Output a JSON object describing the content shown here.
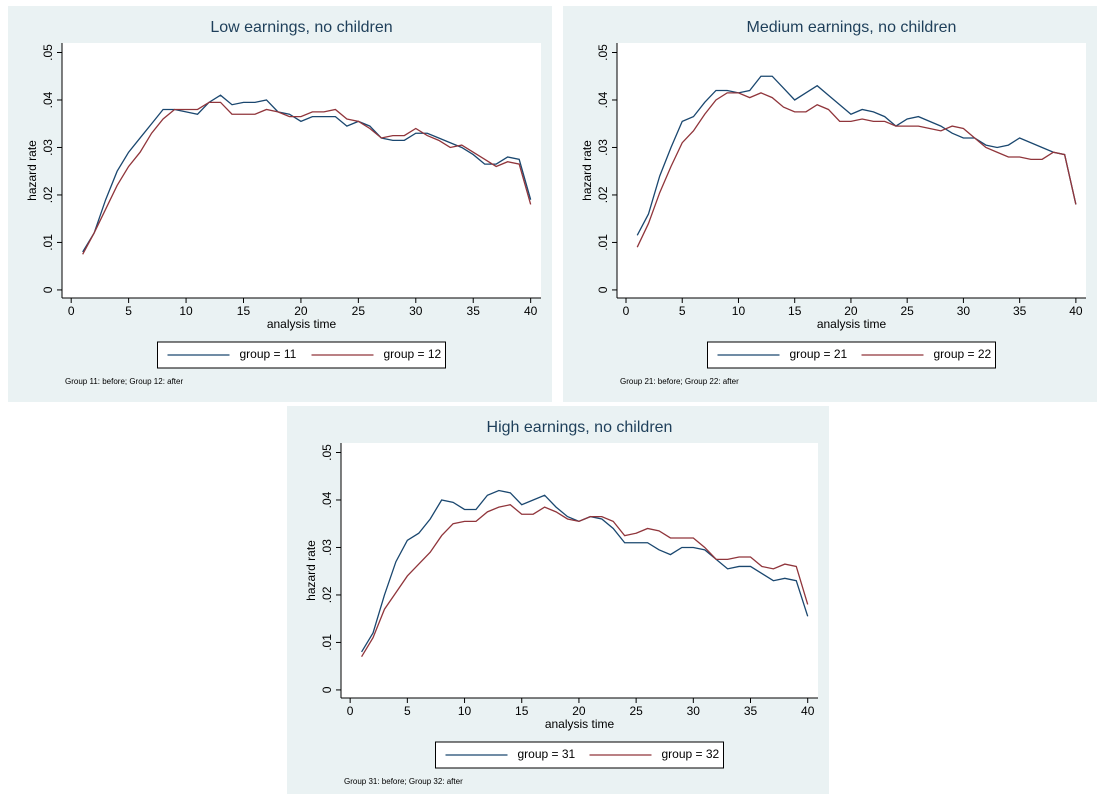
{
  "chart_data": [
    {
      "type": "line",
      "title": "Low earnings, no children",
      "xlabel": "analysis time",
      "ylabel": "hazard rate",
      "note": "Group 11: before; Group 12: after",
      "x": [
        1,
        2,
        3,
        4,
        5,
        6,
        7,
        8,
        9,
        10,
        11,
        12,
        13,
        14,
        15,
        16,
        17,
        18,
        19,
        20,
        21,
        22,
        23,
        24,
        25,
        26,
        27,
        28,
        29,
        30,
        31,
        32,
        33,
        34,
        35,
        36,
        37,
        38,
        39,
        40
      ],
      "series": [
        {
          "name": "group = 11",
          "color": "#1a476f",
          "values": [
            0.008,
            0.012,
            0.019,
            0.025,
            0.029,
            0.032,
            0.035,
            0.038,
            0.038,
            0.0375,
            0.037,
            0.0395,
            0.041,
            0.039,
            0.0395,
            0.0395,
            0.04,
            0.0375,
            0.037,
            0.0355,
            0.0365,
            0.0365,
            0.0365,
            0.0345,
            0.0355,
            0.0345,
            0.032,
            0.0315,
            0.0315,
            0.033,
            0.033,
            0.032,
            0.031,
            0.03,
            0.0285,
            0.0265,
            0.0265,
            0.028,
            0.0275,
            0.019
          ]
        },
        {
          "name": "group = 12",
          "color": "#90353b",
          "values": [
            0.0075,
            0.012,
            0.017,
            0.022,
            0.026,
            0.029,
            0.033,
            0.036,
            0.038,
            0.038,
            0.038,
            0.0395,
            0.0395,
            0.037,
            0.037,
            0.037,
            0.038,
            0.0375,
            0.0365,
            0.0365,
            0.0375,
            0.0375,
            0.038,
            0.036,
            0.0355,
            0.034,
            0.032,
            0.0325,
            0.0325,
            0.034,
            0.0325,
            0.0315,
            0.03,
            0.0305,
            0.029,
            0.0275,
            0.026,
            0.027,
            0.0265,
            0.018
          ]
        }
      ],
      "xlim": [
        -0.8,
        40.9
      ],
      "xticks": [
        0,
        5,
        10,
        15,
        20,
        25,
        30,
        35,
        40
      ],
      "ylim": [
        -0.0017,
        0.052
      ],
      "yticks": [
        0,
        {
          "value": 0.01,
          "label": ".01"
        },
        {
          "value": 0.02,
          "label": ".02"
        },
        {
          "value": 0.03,
          "label": ".03"
        },
        {
          "value": 0.04,
          "label": ".04"
        },
        {
          "value": 0.05,
          "label": ".05"
        }
      ]
    },
    {
      "type": "line",
      "title": "Medium earnings, no children",
      "xlabel": "analysis time",
      "ylabel": "hazard rate",
      "note": "Group 21: before; Group 22: after",
      "x": [
        1,
        2,
        3,
        4,
        5,
        6,
        7,
        8,
        9,
        10,
        11,
        12,
        13,
        14,
        15,
        16,
        17,
        18,
        19,
        20,
        21,
        22,
        23,
        24,
        25,
        26,
        27,
        28,
        29,
        30,
        31,
        32,
        33,
        34,
        35,
        36,
        37,
        38,
        39,
        40
      ],
      "series": [
        {
          "name": "group = 21",
          "color": "#1a476f",
          "values": [
            0.0115,
            0.016,
            0.024,
            0.03,
            0.0355,
            0.0365,
            0.0395,
            0.042,
            0.042,
            0.0415,
            0.042,
            0.045,
            0.045,
            0.0425,
            0.04,
            0.0415,
            0.043,
            0.041,
            0.039,
            0.037,
            0.038,
            0.0375,
            0.0365,
            0.0345,
            0.036,
            0.0365,
            0.0355,
            0.0345,
            0.033,
            0.032,
            0.032,
            0.0305,
            0.03,
            0.0305,
            0.032,
            0.031,
            0.03,
            0.029,
            0.0285,
            0.018
          ]
        },
        {
          "name": "group = 22",
          "color": "#90353b",
          "values": [
            0.009,
            0.014,
            0.0205,
            0.026,
            0.031,
            0.0335,
            0.037,
            0.04,
            0.0415,
            0.0415,
            0.0405,
            0.0415,
            0.0405,
            0.0385,
            0.0375,
            0.0375,
            0.039,
            0.038,
            0.0355,
            0.0355,
            0.036,
            0.0355,
            0.0355,
            0.0345,
            0.0345,
            0.0345,
            0.034,
            0.0335,
            0.0345,
            0.034,
            0.032,
            0.03,
            0.029,
            0.028,
            0.028,
            0.0275,
            0.0275,
            0.029,
            0.0285,
            0.018
          ]
        }
      ],
      "xlim": [
        -0.8,
        40.9
      ],
      "xticks": [
        0,
        5,
        10,
        15,
        20,
        25,
        30,
        35,
        40
      ],
      "ylim": [
        -0.0017,
        0.052
      ],
      "yticks": [
        0,
        {
          "value": 0.01,
          "label": ".01"
        },
        {
          "value": 0.02,
          "label": ".02"
        },
        {
          "value": 0.03,
          "label": ".03"
        },
        {
          "value": 0.04,
          "label": ".04"
        },
        {
          "value": 0.05,
          "label": ".05"
        }
      ]
    },
    {
      "type": "line",
      "title": "High earnings, no children",
      "xlabel": "analysis time",
      "ylabel": "hazard rate",
      "note": "Group 31: before; Group 32: after",
      "x": [
        1,
        2,
        3,
        4,
        5,
        6,
        7,
        8,
        9,
        10,
        11,
        12,
        13,
        14,
        15,
        16,
        17,
        18,
        19,
        20,
        21,
        22,
        23,
        24,
        25,
        26,
        27,
        28,
        29,
        30,
        31,
        32,
        33,
        34,
        35,
        36,
        37,
        38,
        39,
        40
      ],
      "series": [
        {
          "name": "group = 31",
          "color": "#1a476f",
          "values": [
            0.008,
            0.012,
            0.02,
            0.027,
            0.0315,
            0.033,
            0.036,
            0.04,
            0.0395,
            0.038,
            0.038,
            0.041,
            0.042,
            0.0415,
            0.039,
            0.04,
            0.041,
            0.0385,
            0.0365,
            0.0355,
            0.0365,
            0.036,
            0.034,
            0.031,
            0.031,
            0.031,
            0.0295,
            0.0285,
            0.03,
            0.03,
            0.0295,
            0.0275,
            0.0255,
            0.026,
            0.026,
            0.0245,
            0.023,
            0.0235,
            0.023,
            0.0155
          ]
        },
        {
          "name": "group = 32",
          "color": "#90353b",
          "values": [
            0.007,
            0.011,
            0.017,
            0.0205,
            0.024,
            0.0265,
            0.029,
            0.0325,
            0.035,
            0.0355,
            0.0355,
            0.0375,
            0.0385,
            0.039,
            0.037,
            0.037,
            0.0385,
            0.0375,
            0.036,
            0.0355,
            0.0365,
            0.0365,
            0.0355,
            0.0325,
            0.033,
            0.034,
            0.0335,
            0.032,
            0.032,
            0.032,
            0.03,
            0.0275,
            0.0275,
            0.028,
            0.028,
            0.026,
            0.0255,
            0.0265,
            0.026,
            0.018
          ]
        }
      ],
      "xlim": [
        -0.8,
        40.9
      ],
      "xticks": [
        0,
        5,
        10,
        15,
        20,
        25,
        30,
        35,
        40
      ],
      "ylim": [
        -0.0017,
        0.052
      ],
      "yticks": [
        0,
        {
          "value": 0.01,
          "label": ".01"
        },
        {
          "value": 0.02,
          "label": ".02"
        },
        {
          "value": 0.03,
          "label": ".03"
        },
        {
          "value": 0.04,
          "label": ".04"
        },
        {
          "value": 0.05,
          "label": ".05"
        }
      ]
    }
  ]
}
